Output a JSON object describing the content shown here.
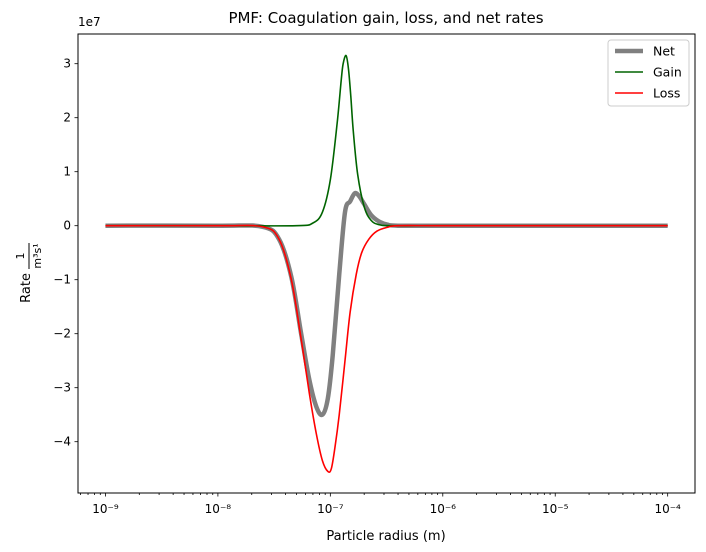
{
  "chart_data": {
    "type": "line",
    "title": "PMF: Coagulation gain, loss, and net rates",
    "xlabel": "Particle radius (m)",
    "ylabel_prefix": "Rate",
    "ylabel_unit_fraction": {
      "numerator": "1",
      "denominator": "m³s¹"
    },
    "x_scale": "log",
    "x_ticks": [
      {
        "value": 1e-09,
        "label": "10⁻⁹"
      },
      {
        "value": 1e-08,
        "label": "10⁻⁸"
      },
      {
        "value": 1e-07,
        "label": "10⁻⁷"
      },
      {
        "value": 1e-06,
        "label": "10⁻⁶"
      },
      {
        "value": 1e-05,
        "label": "10⁻⁵"
      },
      {
        "value": 0.0001,
        "label": "10⁻⁴"
      }
    ],
    "y_ticks": [
      {
        "value": 3,
        "label": "3"
      },
      {
        "value": 2,
        "label": "2"
      },
      {
        "value": 1,
        "label": "1"
      },
      {
        "value": 0,
        "label": "0"
      },
      {
        "value": -1,
        "label": "−1"
      },
      {
        "value": -2,
        "label": "−2"
      },
      {
        "value": -3,
        "label": "−3"
      },
      {
        "value": -4,
        "label": "−4"
      }
    ],
    "y_offset_label": "1e7",
    "xlim": [
      5.7e-10,
      0.000175
    ],
    "ylim": [
      -4.95,
      3.55
    ],
    "y_unit_multiplier": 10000000.0,
    "legend_position": "upper right",
    "grid": false,
    "series": [
      {
        "name": "Net",
        "color": "#808080",
        "x": [
          1e-09,
          1e-08,
          2.5e-08,
          3.5e-08,
          4.5e-08,
          5.5e-08,
          6.5e-08,
          7.5e-08,
          8.5e-08,
          9.5e-08,
          1.05e-07,
          1.2e-07,
          1.35e-07,
          1.5e-07,
          1.65e-07,
          1.8e-07,
          2e-07,
          2.3e-07,
          2.7e-07,
          3.2e-07,
          4e-07,
          1e-06,
          1e-05,
          0.0001
        ],
        "values": [
          0,
          0,
          -0.02,
          -0.25,
          -0.95,
          -2.0,
          -2.85,
          -3.35,
          -3.5,
          -3.2,
          -2.4,
          -0.9,
          0.25,
          0.45,
          0.6,
          0.55,
          0.4,
          0.2,
          0.08,
          0.02,
          0,
          0,
          0,
          0
        ]
      },
      {
        "name": "Gain",
        "color": "#006400",
        "x": [
          1e-09,
          1e-08,
          5e-08,
          7e-08,
          8.5e-08,
          1e-07,
          1.15e-07,
          1.25e-07,
          1.3e-07,
          1.38e-07,
          1.45e-07,
          1.52e-07,
          1.6e-07,
          1.75e-07,
          2e-07,
          2.3e-07,
          2.7e-07,
          3.5e-07,
          1e-06,
          1e-05,
          0.0001
        ],
        "values": [
          0,
          0,
          0,
          0.05,
          0.25,
          0.85,
          1.9,
          2.7,
          3.0,
          3.15,
          2.9,
          2.4,
          1.75,
          0.95,
          0.35,
          0.1,
          0.02,
          0,
          0,
          0,
          0
        ]
      },
      {
        "name": "Loss",
        "color": "#ff0000",
        "x": [
          1e-09,
          1e-08,
          2.5e-08,
          3.5e-08,
          4.5e-08,
          5.5e-08,
          6.5e-08,
          7.5e-08,
          8.5e-08,
          9.5e-08,
          1.02e-07,
          1.1e-07,
          1.2e-07,
          1.35e-07,
          1.5e-07,
          1.7e-07,
          1.9e-07,
          2.2e-07,
          2.6e-07,
          3.2e-07,
          4e-07,
          1e-06,
          1e-05,
          0.0001
        ],
        "values": [
          0,
          0,
          -0.02,
          -0.25,
          -1.0,
          -2.1,
          -3.1,
          -3.85,
          -4.35,
          -4.55,
          -4.5,
          -4.1,
          -3.5,
          -2.5,
          -1.6,
          -0.9,
          -0.5,
          -0.25,
          -0.1,
          -0.03,
          0,
          0,
          0,
          0
        ]
      }
    ]
  }
}
